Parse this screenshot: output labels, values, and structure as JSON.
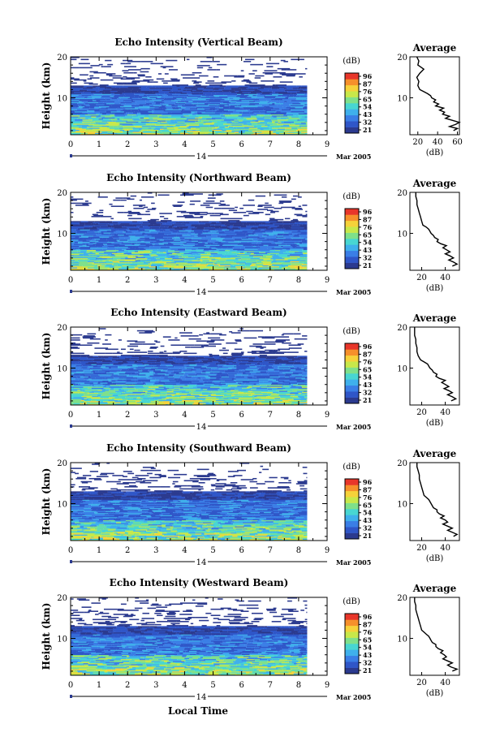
{
  "figure": {
    "xlabel": "Local Time",
    "date_label": "Mar 2005",
    "date_day": "14"
  },
  "colors": {
    "colormap": [
      "#2b3a8f",
      "#2f56c8",
      "#3a7ee6",
      "#3fb0ec",
      "#48d6d2",
      "#7fe08a",
      "#c8e84a",
      "#f6d23a",
      "#f6902b",
      "#e8362a"
    ]
  },
  "chart_data": [
    {
      "type": "heatmap",
      "title": "Echo Intensity (Vertical Beam)",
      "ylabel": "Height (km)",
      "xlim": [
        0,
        9
      ],
      "x_ticks": [
        "0",
        "1",
        "2",
        "3",
        "4",
        "5",
        "6",
        "7",
        "8",
        "9"
      ],
      "ylim": [
        1,
        20
      ],
      "y_ticks": [
        "10",
        "20"
      ],
      "data_x_range": [
        0,
        8.3
      ],
      "colorbar": {
        "unit": "(dB)",
        "ticks": [
          "96",
          "87",
          "76",
          "65",
          "54",
          "43",
          "32",
          "21"
        ]
      },
      "profile": {
        "title": "Average",
        "xlabel": "(dB)",
        "x_ticks": [
          "20",
          "40",
          "60"
        ],
        "xlim": [
          12,
          62
        ],
        "y_ticks": [
          "10",
          "20"
        ],
        "heights": [
          2,
          2.5,
          3,
          3.5,
          4,
          4.5,
          5,
          5.5,
          6,
          6.5,
          7,
          7.5,
          8,
          8.5,
          9,
          9.5,
          10,
          10.5,
          11,
          11.5,
          12,
          12.5,
          13,
          14,
          15,
          16,
          17,
          18,
          19,
          20
        ],
        "values": [
          56,
          60,
          52,
          58,
          62,
          55,
          48,
          52,
          45,
          47,
          42,
          46,
          38,
          41,
          36,
          38,
          34,
          33,
          30,
          26,
          22,
          21,
          20,
          21,
          19,
          22,
          26,
          20,
          21,
          19
        ]
      }
    },
    {
      "type": "heatmap",
      "title": "Echo Intensity (Northward Beam)",
      "ylabel": "Height (km)",
      "xlim": [
        0,
        9
      ],
      "x_ticks": [
        "0",
        "1",
        "2",
        "3",
        "4",
        "5",
        "6",
        "7",
        "8",
        "9"
      ],
      "ylim": [
        1,
        20
      ],
      "y_ticks": [
        "10",
        "20"
      ],
      "data_x_range": [
        0,
        8.3
      ],
      "colorbar": {
        "unit": "(dB)",
        "ticks": [
          "96",
          "87",
          "76",
          "65",
          "54",
          "43",
          "32",
          "21"
        ]
      },
      "profile": {
        "title": "Average",
        "xlabel": "(dB)",
        "x_ticks": [
          "20",
          "40"
        ],
        "xlim": [
          10,
          52
        ],
        "y_ticks": [
          "10",
          "20"
        ],
        "heights": [
          2,
          2.5,
          3,
          3.5,
          4,
          4.5,
          5,
          5.5,
          6,
          6.5,
          7,
          7.5,
          8,
          8.5,
          9,
          9.5,
          10,
          10.5,
          11,
          11.5,
          12,
          13,
          14,
          15,
          16,
          17,
          18,
          19,
          20
        ],
        "values": [
          46,
          50,
          47,
          43,
          47,
          44,
          40,
          44,
          41,
          38,
          41,
          36,
          33,
          34,
          31,
          30,
          28,
          27,
          26,
          24,
          21,
          20,
          19,
          18,
          17,
          16,
          16,
          15,
          15
        ]
      }
    },
    {
      "type": "heatmap",
      "title": "Echo Intensity (Eastward Beam)",
      "ylabel": "Height (km)",
      "xlim": [
        0,
        9
      ],
      "x_ticks": [
        "0",
        "1",
        "2",
        "3",
        "4",
        "5",
        "6",
        "7",
        "8",
        "9"
      ],
      "ylim": [
        1,
        20
      ],
      "y_ticks": [
        "10",
        "20"
      ],
      "data_x_range": [
        0,
        8.3
      ],
      "colorbar": {
        "unit": "(dB)",
        "ticks": [
          "96",
          "87",
          "76",
          "65",
          "54",
          "43",
          "32",
          "21"
        ]
      },
      "profile": {
        "title": "Average",
        "xlabel": "(dB)",
        "x_ticks": [
          "20",
          "40"
        ],
        "xlim": [
          10,
          52
        ],
        "y_ticks": [
          "10",
          "20"
        ],
        "heights": [
          2,
          2.5,
          3,
          3.5,
          4,
          4.5,
          5,
          5.5,
          6,
          6.5,
          7,
          7.5,
          8,
          8.5,
          9,
          9.5,
          10,
          10.5,
          11,
          11.5,
          12,
          13,
          14,
          15,
          16,
          17,
          18,
          19,
          20
        ],
        "values": [
          45,
          49,
          46,
          42,
          46,
          43,
          39,
          43,
          40,
          37,
          40,
          35,
          32,
          33,
          30,
          29,
          27,
          26,
          25,
          22,
          19,
          17,
          16,
          16,
          15,
          15,
          14,
          14,
          14
        ]
      }
    },
    {
      "type": "heatmap",
      "title": "Echo Intensity (Southward Beam)",
      "ylabel": "Height (km)",
      "xlim": [
        0,
        9
      ],
      "x_ticks": [
        "0",
        "1",
        "2",
        "3",
        "4",
        "5",
        "6",
        "7",
        "8",
        "9"
      ],
      "ylim": [
        1,
        20
      ],
      "y_ticks": [
        "10",
        "20"
      ],
      "data_x_range": [
        0,
        8.3
      ],
      "colorbar": {
        "unit": "(dB)",
        "ticks": [
          "96",
          "87",
          "76",
          "65",
          "54",
          "43",
          "32",
          "21"
        ]
      },
      "profile": {
        "title": "Average",
        "xlabel": "(dB)",
        "x_ticks": [
          "20",
          "40"
        ],
        "xlim": [
          10,
          52
        ],
        "y_ticks": [
          "10",
          "20"
        ],
        "heights": [
          2,
          2.5,
          3,
          3.5,
          4,
          4.5,
          5,
          5.5,
          6,
          6.5,
          7,
          7.5,
          8,
          8.5,
          9,
          9.5,
          10,
          10.5,
          11,
          11.5,
          12,
          13,
          14,
          15,
          16,
          17,
          18,
          19,
          20
        ],
        "values": [
          47,
          50,
          46,
          42,
          46,
          42,
          38,
          42,
          40,
          36,
          39,
          35,
          33,
          33,
          30,
          29,
          28,
          27,
          26,
          24,
          22,
          21,
          20,
          19,
          18,
          18,
          17,
          16,
          16
        ]
      }
    },
    {
      "type": "heatmap",
      "title": "Echo Intensity (Westward Beam)",
      "ylabel": "Height (km)",
      "xlim": [
        0,
        9
      ],
      "x_ticks": [
        "0",
        "1",
        "2",
        "3",
        "4",
        "5",
        "6",
        "7",
        "8",
        "9"
      ],
      "ylim": [
        1,
        20
      ],
      "y_ticks": [
        "10",
        "20"
      ],
      "data_x_range": [
        0,
        8.3
      ],
      "colorbar": {
        "unit": "(dB)",
        "ticks": [
          "96",
          "87",
          "76",
          "65",
          "54",
          "43",
          "32",
          "21"
        ]
      },
      "profile": {
        "title": "Average",
        "xlabel": "(dB)",
        "x_ticks": [
          "20",
          "40"
        ],
        "xlim": [
          10,
          52
        ],
        "y_ticks": [
          "10",
          "20"
        ],
        "heights": [
          2,
          2.5,
          3,
          3.5,
          4,
          4.5,
          5,
          5.5,
          6,
          6.5,
          7,
          7.5,
          8,
          8.5,
          9,
          9.5,
          10,
          10.5,
          11,
          11.5,
          12,
          13,
          14,
          15,
          16,
          17,
          18,
          19,
          20
        ],
        "values": [
          46,
          50,
          45,
          42,
          46,
          42,
          38,
          41,
          39,
          36,
          38,
          34,
          32,
          32,
          29,
          28,
          27,
          26,
          24,
          22,
          20,
          19,
          18,
          17,
          16,
          15,
          15,
          14,
          14
        ]
      }
    }
  ]
}
